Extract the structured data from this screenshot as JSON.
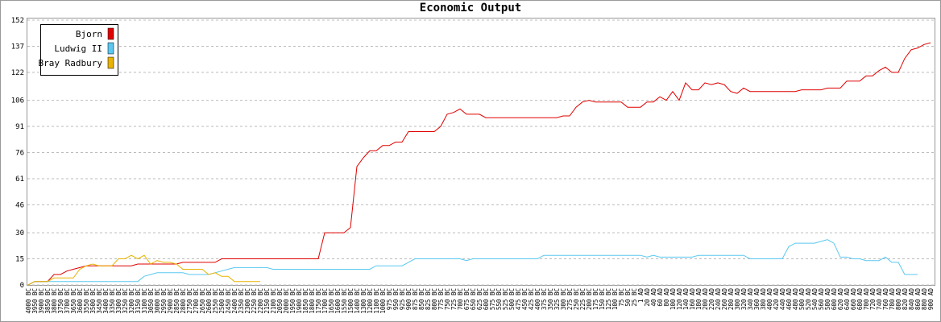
{
  "chart_data": {
    "type": "line",
    "title": "Economic Output",
    "categories": [
      "4000 BC",
      "3950 BC",
      "3900 BC",
      "3850 BC",
      "3800 BC",
      "3750 BC",
      "3700 BC",
      "3650 BC",
      "3600 BC",
      "3550 BC",
      "3500 BC",
      "3450 BC",
      "3400 BC",
      "3350 BC",
      "3300 BC",
      "3250 BC",
      "3200 BC",
      "3150 BC",
      "3100 BC",
      "3050 BC",
      "3000 BC",
      "2950 BC",
      "2900 BC",
      "2850 BC",
      "2800 BC",
      "2750 BC",
      "2700 BC",
      "2650 BC",
      "2600 BC",
      "2550 BC",
      "2500 BC",
      "2450 BC",
      "2400 BC",
      "2350 BC",
      "2300 BC",
      "2250 BC",
      "2200 BC",
      "2150 BC",
      "2100 BC",
      "2050 BC",
      "2000 BC",
      "1950 BC",
      "1900 BC",
      "1850 BC",
      "1800 BC",
      "1750 BC",
      "1700 BC",
      "1650 BC",
      "1600 BC",
      "1550 BC",
      "1500 BC",
      "1400 BC",
      "1300 BC",
      "1200 BC",
      "1100 BC",
      "1000 BC",
      "975 BC",
      "950 BC",
      "925 BC",
      "900 BC",
      "875 BC",
      "850 BC",
      "825 BC",
      "800 BC",
      "775 BC",
      "750 BC",
      "725 BC",
      "700 BC",
      "675 BC",
      "650 BC",
      "625 BC",
      "600 BC",
      "575 BC",
      "550 BC",
      "525 BC",
      "500 BC",
      "475 BC",
      "450 BC",
      "425 BC",
      "400 BC",
      "375 BC",
      "350 BC",
      "325 BC",
      "300 BC",
      "275 BC",
      "250 BC",
      "225 BC",
      "200 BC",
      "175 BC",
      "150 BC",
      "125 BC",
      "100 BC",
      "75 BC",
      "50 BC",
      "25 BC",
      "1 AD",
      "20 AD",
      "40 AD",
      "60 AD",
      "80 AD",
      "100 AD",
      "120 AD",
      "140 AD",
      "160 AD",
      "180 AD",
      "200 AD",
      "220 AD",
      "240 AD",
      "260 AD",
      "280 AD",
      "300 AD",
      "320 AD",
      "340 AD",
      "360 AD",
      "380 AD",
      "400 AD",
      "420 AD",
      "440 AD",
      "460 AD",
      "480 AD",
      "500 AD",
      "520 AD",
      "540 AD",
      "560 AD",
      "580 AD",
      "600 AD",
      "620 AD",
      "640 AD",
      "660 AD",
      "680 AD",
      "700 AD",
      "720 AD",
      "740 AD",
      "760 AD",
      "780 AD",
      "800 AD",
      "820 AD",
      "840 AD",
      "860 AD",
      "880 AD",
      "900 AD"
    ],
    "series": [
      {
        "name": "Bjorn",
        "color": "#e00000",
        "values": [
          0,
          2,
          2,
          2,
          6,
          6,
          8,
          9,
          10,
          11,
          11,
          11,
          11,
          11,
          11,
          11,
          11,
          12,
          12,
          12,
          12,
          12,
          12,
          12,
          13,
          13,
          13,
          13,
          13,
          13,
          15,
          15,
          15,
          15,
          15,
          15,
          15,
          15,
          15,
          15,
          15,
          15,
          15,
          15,
          15,
          15,
          30,
          30,
          30,
          30,
          33,
          68,
          73,
          77,
          77,
          80,
          80,
          82,
          82,
          88,
          88,
          88,
          88,
          88,
          91,
          98,
          99,
          101,
          98,
          98,
          98,
          96,
          96,
          96,
          96,
          96,
          96,
          96,
          96,
          96,
          96,
          96,
          96,
          97,
          97,
          102,
          105,
          106,
          105,
          105,
          105,
          105,
          105,
          102,
          102,
          102,
          105,
          105,
          108,
          106,
          111,
          106,
          116,
          112,
          112,
          116,
          115,
          116,
          115,
          111,
          110,
          113,
          111,
          111,
          111,
          111,
          111,
          111,
          111,
          111,
          112,
          112,
          112,
          112,
          113,
          113,
          113,
          117,
          117,
          117,
          120,
          120,
          123,
          125,
          122,
          122,
          130,
          135,
          136,
          138,
          139
        ]
      },
      {
        "name": "Ludwig II",
        "color": "#5ac8f0",
        "values": [
          0,
          2,
          2,
          2,
          2,
          2,
          2,
          2,
          2,
          2,
          2,
          2,
          2,
          2,
          2,
          2,
          2,
          2,
          5,
          6,
          7,
          7,
          7,
          7,
          7,
          6,
          6,
          6,
          6,
          7,
          8,
          9,
          10,
          10,
          10,
          10,
          10,
          10,
          9,
          9,
          9,
          9,
          9,
          9,
          9,
          9,
          9,
          9,
          9,
          9,
          9,
          9,
          9,
          9,
          11,
          11,
          11,
          11,
          11,
          13,
          15,
          15,
          15,
          15,
          15,
          15,
          15,
          15,
          14,
          15,
          15,
          15,
          15,
          15,
          15,
          15,
          15,
          15,
          15,
          15,
          17,
          17,
          17,
          17,
          17,
          17,
          17,
          17,
          17,
          17,
          17,
          17,
          17,
          17,
          17,
          17,
          16,
          17,
          16,
          16,
          16,
          16,
          16,
          16,
          17,
          17,
          17,
          17,
          17,
          17,
          17,
          17,
          15,
          15,
          15,
          15,
          15,
          15,
          22,
          24,
          24,
          24,
          24,
          25,
          26,
          24,
          16,
          16,
          15,
          15,
          14,
          14,
          14,
          16,
          13,
          13,
          6,
          6,
          6,
          null,
          null
        ]
      },
      {
        "name": "Bray Radbury",
        "color": "#e8b400",
        "values": [
          0,
          2,
          2,
          2,
          4,
          4,
          4,
          4,
          9,
          11,
          12,
          11,
          11,
          11,
          15,
          15,
          17,
          15,
          17,
          12,
          14,
          13,
          13,
          12,
          9,
          9,
          9,
          9,
          6,
          7,
          5,
          5,
          2,
          2,
          2,
          2,
          2,
          null,
          null,
          null,
          null,
          null,
          null,
          null,
          null,
          null,
          null,
          null,
          null,
          null,
          null,
          null,
          null,
          null,
          null,
          null,
          null,
          null,
          null,
          null,
          null,
          null,
          null,
          null,
          null,
          null,
          null,
          null,
          null,
          null,
          null,
          null,
          null,
          null,
          null,
          null,
          null,
          null,
          null,
          null,
          null,
          null,
          null,
          null,
          null,
          null,
          null,
          null,
          null,
          null,
          null,
          null,
          null,
          null,
          null,
          null,
          null,
          null,
          null,
          null,
          null,
          null,
          null,
          null,
          null,
          null,
          null,
          null,
          null,
          null,
          null,
          null,
          null,
          null,
          null,
          null,
          null,
          null,
          null,
          null,
          null,
          null,
          null,
          null,
          null,
          null,
          null,
          null,
          null,
          null,
          null,
          null,
          null,
          null,
          null,
          null,
          null,
          null,
          null,
          null,
          null
        ]
      }
    ],
    "ylim": [
      0,
      152
    ],
    "yticks": [
      0,
      15,
      30,
      46,
      61,
      76,
      91,
      106,
      122,
      137,
      152
    ],
    "grid": true,
    "legend": "top-left"
  }
}
